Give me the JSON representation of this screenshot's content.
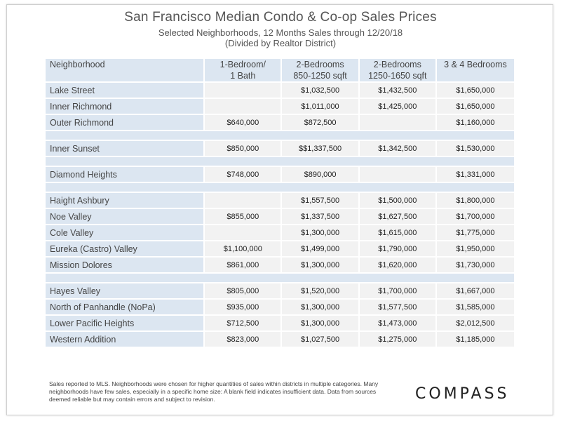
{
  "header": {
    "title": "San Francisco Median Condo & Co-op Sales Prices",
    "subtitle_1": "Selected Neighborhoods, 12 Months Sales through 12/20/18",
    "subtitle_2": "(Divided by Realtor District)"
  },
  "chart_data": {
    "type": "table",
    "columns": [
      {
        "line1": "Neighborhood",
        "line2": ""
      },
      {
        "line1": "1-Bedroom/",
        "line2": "1 Bath"
      },
      {
        "line1": "2-Bedrooms",
        "line2": "850-1250 sqft"
      },
      {
        "line1": "2-Bedrooms",
        "line2": "1250-1650 sqft"
      },
      {
        "line1": "3 & 4 Bedrooms",
        "line2": ""
      }
    ],
    "groups": [
      [
        {
          "name": "Lake Street",
          "values": [
            "",
            "$1,032,500",
            "$1,432,500",
            "$1,650,000"
          ]
        },
        {
          "name": "Inner Richmond",
          "values": [
            "",
            "$1,011,000",
            "$1,425,000",
            "$1,650,000"
          ]
        },
        {
          "name": "Outer Richmond",
          "values": [
            "$640,000",
            "$872,500",
            "",
            "$1,160,000"
          ]
        }
      ],
      [
        {
          "name": "Inner Sunset",
          "values": [
            "$850,000",
            "$$1,337,500",
            "$1,342,500",
            "$1,530,000"
          ]
        }
      ],
      [
        {
          "name": "Diamond Heights",
          "values": [
            "$748,000",
            "$890,000",
            "",
            "$1,331,000"
          ]
        }
      ],
      [
        {
          "name": "Haight Ashbury",
          "values": [
            "",
            "$1,557,500",
            "$1,500,000",
            "$1,800,000"
          ]
        },
        {
          "name": "Noe Valley",
          "values": [
            "$855,000",
            "$1,337,500",
            "$1,627,500",
            "$1,700,000"
          ]
        },
        {
          "name": "Cole Valley",
          "values": [
            "",
            "$1,300,000",
            "$1,615,000",
            "$1,775,000"
          ]
        },
        {
          "name": "Eureka (Castro) Valley",
          "values": [
            "$1,100,000",
            "$1,499,000",
            "$1,790,000",
            "$1,950,000"
          ]
        },
        {
          "name": "Mission Dolores",
          "values": [
            "$861,000",
            "$1,300,000",
            "$1,620,000",
            "$1,730,000"
          ]
        }
      ],
      [
        {
          "name": "Hayes Valley",
          "values": [
            "$805,000",
            "$1,520,000",
            "$1,700,000",
            "$1,667,000"
          ]
        },
        {
          "name": "North of Panhandle (NoPa)",
          "values": [
            "$935,000",
            "$1,300,000",
            "$1,577,500",
            "$1,585,000"
          ]
        },
        {
          "name": "Lower Pacific Heights",
          "values": [
            "$712,500",
            "$1,300,000",
            "$1,473,000",
            "$2,012,500"
          ]
        },
        {
          "name": "Western Addition",
          "values": [
            "$823,000",
            "$1,027,500",
            "$1,275,000",
            "$1,185,000"
          ]
        }
      ]
    ]
  },
  "footnote": "Sales reported to MLS. Neighborhoods were chosen for higher quantities of sales within districts in multiple categories. Many neighborhoods have few sales, especially in a specific home size: A blank field indicates insufficient data. Data from sources deemed reliable but may contain errors and subject to revision.",
  "logo_text": "COMPASS"
}
